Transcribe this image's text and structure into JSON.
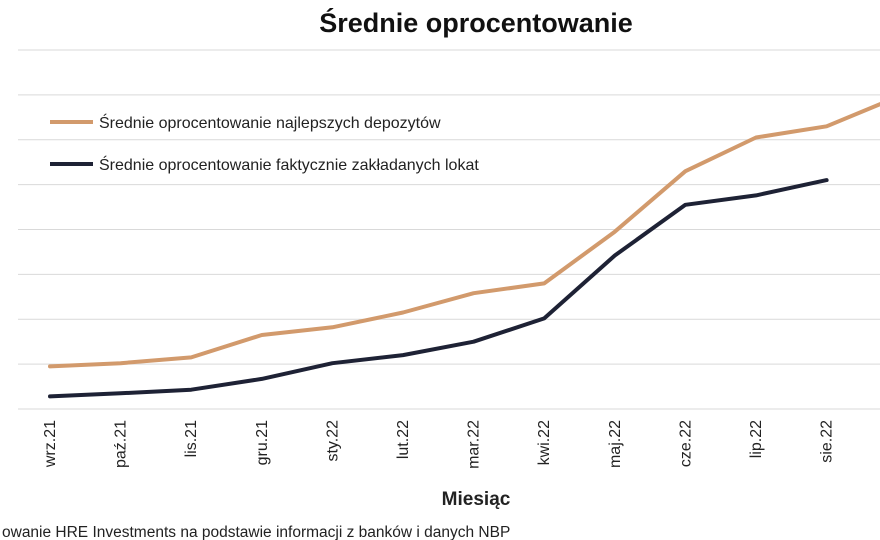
{
  "chart_data": {
    "type": "line",
    "title": "Średnie oprocentowanie",
    "xlabel": "Miesiąc",
    "ylabel": "",
    "categories": [
      "wrz.21",
      "paź.21",
      "lis.21",
      "gru.21",
      "sty.22",
      "lut.22",
      "mar.22",
      "kwi.22",
      "maj.22",
      "cze.22",
      "lip.22",
      "sie.22",
      ""
    ],
    "ylim": [
      0,
      8
    ],
    "grid": true,
    "legend_position": "top-left",
    "series": [
      {
        "name": "Średnie oprocentowanie najlepszych depozytów",
        "color": "#d29a6c",
        "values": [
          0.95,
          1.02,
          1.15,
          1.65,
          1.82,
          2.15,
          2.58,
          2.8,
          3.95,
          5.3,
          6.05,
          6.3,
          6.95
        ]
      },
      {
        "name": "Średnie oprocentowanie faktycznie zakładanych lokat",
        "color": "#1e2235",
        "values": [
          0.28,
          0.35,
          0.43,
          0.67,
          1.02,
          1.2,
          1.5,
          2.02,
          3.42,
          4.55,
          4.76,
          5.1,
          null
        ]
      }
    ],
    "source_note": "owanie HRE Investments na podstawie informacji z banków i danych NBP"
  }
}
